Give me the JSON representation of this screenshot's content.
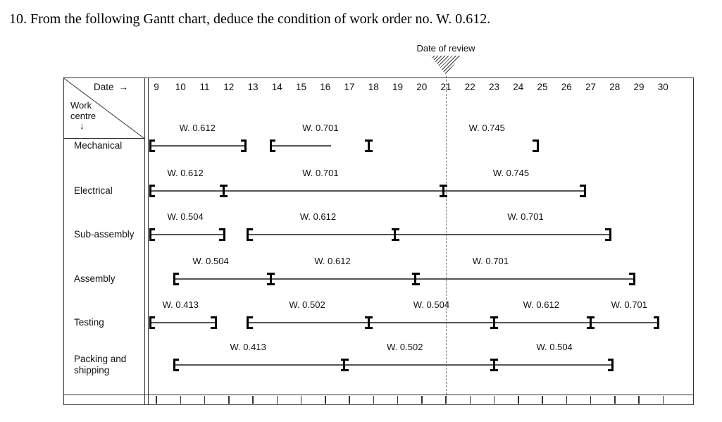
{
  "title": "10. From the following Gantt chart, deduce the condition of work order no. W. 0.612.",
  "review": {
    "label": "Date of review",
    "date": 21
  },
  "header": {
    "date_label": "Date",
    "work_centre_label": "Work centre"
  },
  "icons": {
    "right_arrow": "→",
    "down_arrow": "↓"
  },
  "chart_data": {
    "type": "gantt",
    "x_axis": {
      "label": "Date",
      "start": 9,
      "end": 30,
      "ticks": [
        9,
        10,
        11,
        12,
        13,
        14,
        15,
        16,
        17,
        18,
        19,
        20,
        21,
        22,
        23,
        24,
        25,
        26,
        27,
        28,
        29,
        30
      ]
    },
    "y_axis": {
      "label": "Work centre",
      "categories": [
        "Mechanical",
        "Electrical",
        "Sub-assembly",
        "Assembly",
        "Testing",
        "Packing and shipping"
      ]
    },
    "review_date": 21,
    "rows": [
      {
        "work_centre": "Mechanical",
        "labels": [
          {
            "text": "W. 0.612",
            "date": 10.7
          },
          {
            "text": "W. 0.701",
            "date": 15.8
          },
          {
            "text": "W. 0.745",
            "date": 22.7
          }
        ],
        "lines": [
          {
            "from": 8.75,
            "to": 12.7
          },
          {
            "from": 13.75,
            "to": 16.25
          }
        ],
        "open": [
          8.75,
          13.75
        ],
        "close": [
          12.7,
          24.8
        ],
        "progress": [
          17.8
        ]
      },
      {
        "work_centre": "Electrical",
        "labels": [
          {
            "text": "W. 0.612",
            "date": 10.2
          },
          {
            "text": "W. 0.701",
            "date": 15.8
          },
          {
            "text": "W. 0.745",
            "date": 23.7
          }
        ],
        "lines": [
          {
            "from": 8.75,
            "to": 26.75
          }
        ],
        "open": [
          8.75
        ],
        "close": [
          26.75
        ],
        "progress": [
          11.8,
          20.9
        ]
      },
      {
        "work_centre": "Sub-assembly",
        "labels": [
          {
            "text": "W. 0.504",
            "date": 10.2
          },
          {
            "text": "W. 0.612",
            "date": 15.7
          },
          {
            "text": "W. 0.701",
            "date": 24.3
          }
        ],
        "lines": [
          {
            "from": 8.75,
            "to": 11.8
          },
          {
            "from": 12.8,
            "to": 27.8
          }
        ],
        "open": [
          8.75,
          12.8
        ],
        "close": [
          11.8,
          27.8
        ],
        "progress": [
          18.9
        ]
      },
      {
        "work_centre": "Assembly",
        "labels": [
          {
            "text": "W. 0.504",
            "date": 11.25
          },
          {
            "text": "W. 0.612",
            "date": 16.3
          },
          {
            "text": "W. 0.701",
            "date": 22.85
          }
        ],
        "lines": [
          {
            "from": 9.75,
            "to": 28.8
          }
        ],
        "open": [
          9.75
        ],
        "close": [
          28.8
        ],
        "progress": [
          13.75,
          19.75
        ]
      },
      {
        "work_centre": "Testing",
        "labels": [
          {
            "text": "W. 0.413",
            "date": 10.0
          },
          {
            "text": "W. 0.502",
            "date": 15.25
          },
          {
            "text": "W. 0.504",
            "date": 20.4
          },
          {
            "text": "W. 0.612",
            "date": 24.95
          },
          {
            "text": "W. 0.701",
            "date": 28.6
          }
        ],
        "lines": [
          {
            "from": 8.75,
            "to": 11.45
          },
          {
            "from": 12.8,
            "to": 29.8
          }
        ],
        "open": [
          8.75,
          12.8
        ],
        "close": [
          11.45,
          29.8
        ],
        "progress": [
          17.8,
          23.0,
          27.0
        ]
      },
      {
        "work_centre": "Packing and shipping",
        "labels": [
          {
            "text": "W. 0.413",
            "date": 12.8
          },
          {
            "text": "W. 0.502",
            "date": 19.3
          },
          {
            "text": "W. 0.504",
            "date": 25.5
          }
        ],
        "lines": [
          {
            "from": 9.75,
            "to": 27.9
          }
        ],
        "open": [
          9.75
        ],
        "close": [
          27.9
        ],
        "progress": [
          16.8,
          23.0
        ]
      }
    ]
  }
}
